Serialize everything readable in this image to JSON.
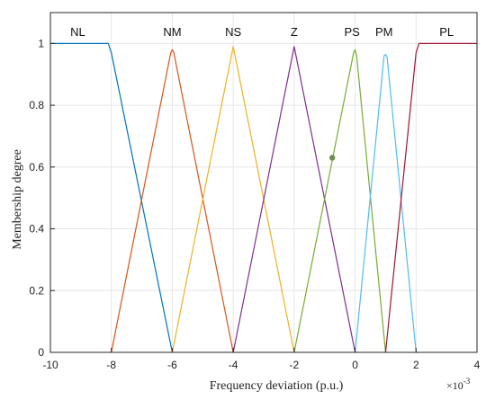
{
  "chart_data": {
    "type": "line",
    "xlabel": "Frequency deviation (p.u.)",
    "ylabel": "Membership degree",
    "xlim": [
      -10,
      4
    ],
    "ylim": [
      0,
      1.1
    ],
    "x_ticks": [
      "-10",
      "-8",
      "-6",
      "-4",
      "-2",
      "0",
      "2",
      "4"
    ],
    "y_ticks": [
      "0",
      "0.2",
      "0.4",
      "0.6",
      "0.8",
      "1"
    ],
    "x_exponent": "×10",
    "x_exponent_power": "-3",
    "grid": true,
    "series": [
      {
        "name": "NL",
        "color": "#0072BD",
        "label_x": -9.1,
        "points": [
          [
            -10,
            1
          ],
          [
            -8.1,
            1
          ],
          [
            -8,
            0.97
          ],
          [
            -6,
            0
          ]
        ]
      },
      {
        "name": "NM",
        "color": "#D95319",
        "label_x": -6.0,
        "points": [
          [
            -8,
            0
          ],
          [
            -6.05,
            0.97
          ],
          [
            -6,
            0.98
          ],
          [
            -5.95,
            0.97
          ],
          [
            -4,
            0
          ]
        ]
      },
      {
        "name": "NS",
        "color": "#EDB120",
        "label_x": -4.0,
        "points": [
          [
            -6,
            0
          ],
          [
            -4,
            0.99
          ],
          [
            -2,
            0
          ]
        ]
      },
      {
        "name": "Z",
        "color": "#7E2F8E",
        "label_x": -2.0,
        "points": [
          [
            -4,
            0
          ],
          [
            -2,
            0.99
          ],
          [
            0,
            0
          ]
        ]
      },
      {
        "name": "PS",
        "color": "#77AC30",
        "label_x": -0.1,
        "points": [
          [
            -2,
            0
          ],
          [
            -0.05,
            0.97
          ],
          [
            0,
            0.98
          ],
          [
            0.05,
            0.96
          ],
          [
            1,
            0
          ]
        ]
      },
      {
        "name": "PM",
        "color": "#4DBEEE",
        "label_x": 0.95,
        "points": [
          [
            0,
            0
          ],
          [
            0.95,
            0.96
          ],
          [
            1.0,
            0.965
          ],
          [
            1.05,
            0.955
          ],
          [
            2,
            0
          ]
        ]
      },
      {
        "name": "PL",
        "color": "#A2142F",
        "label_x": 3.0,
        "points": [
          [
            1,
            0
          ],
          [
            2,
            0.97
          ],
          [
            2.1,
            1
          ],
          [
            4,
            1
          ]
        ]
      }
    ],
    "annotations": [
      {
        "type": "marker",
        "x": -0.75,
        "y": 0.63,
        "color": "#6B8E4E"
      }
    ]
  }
}
